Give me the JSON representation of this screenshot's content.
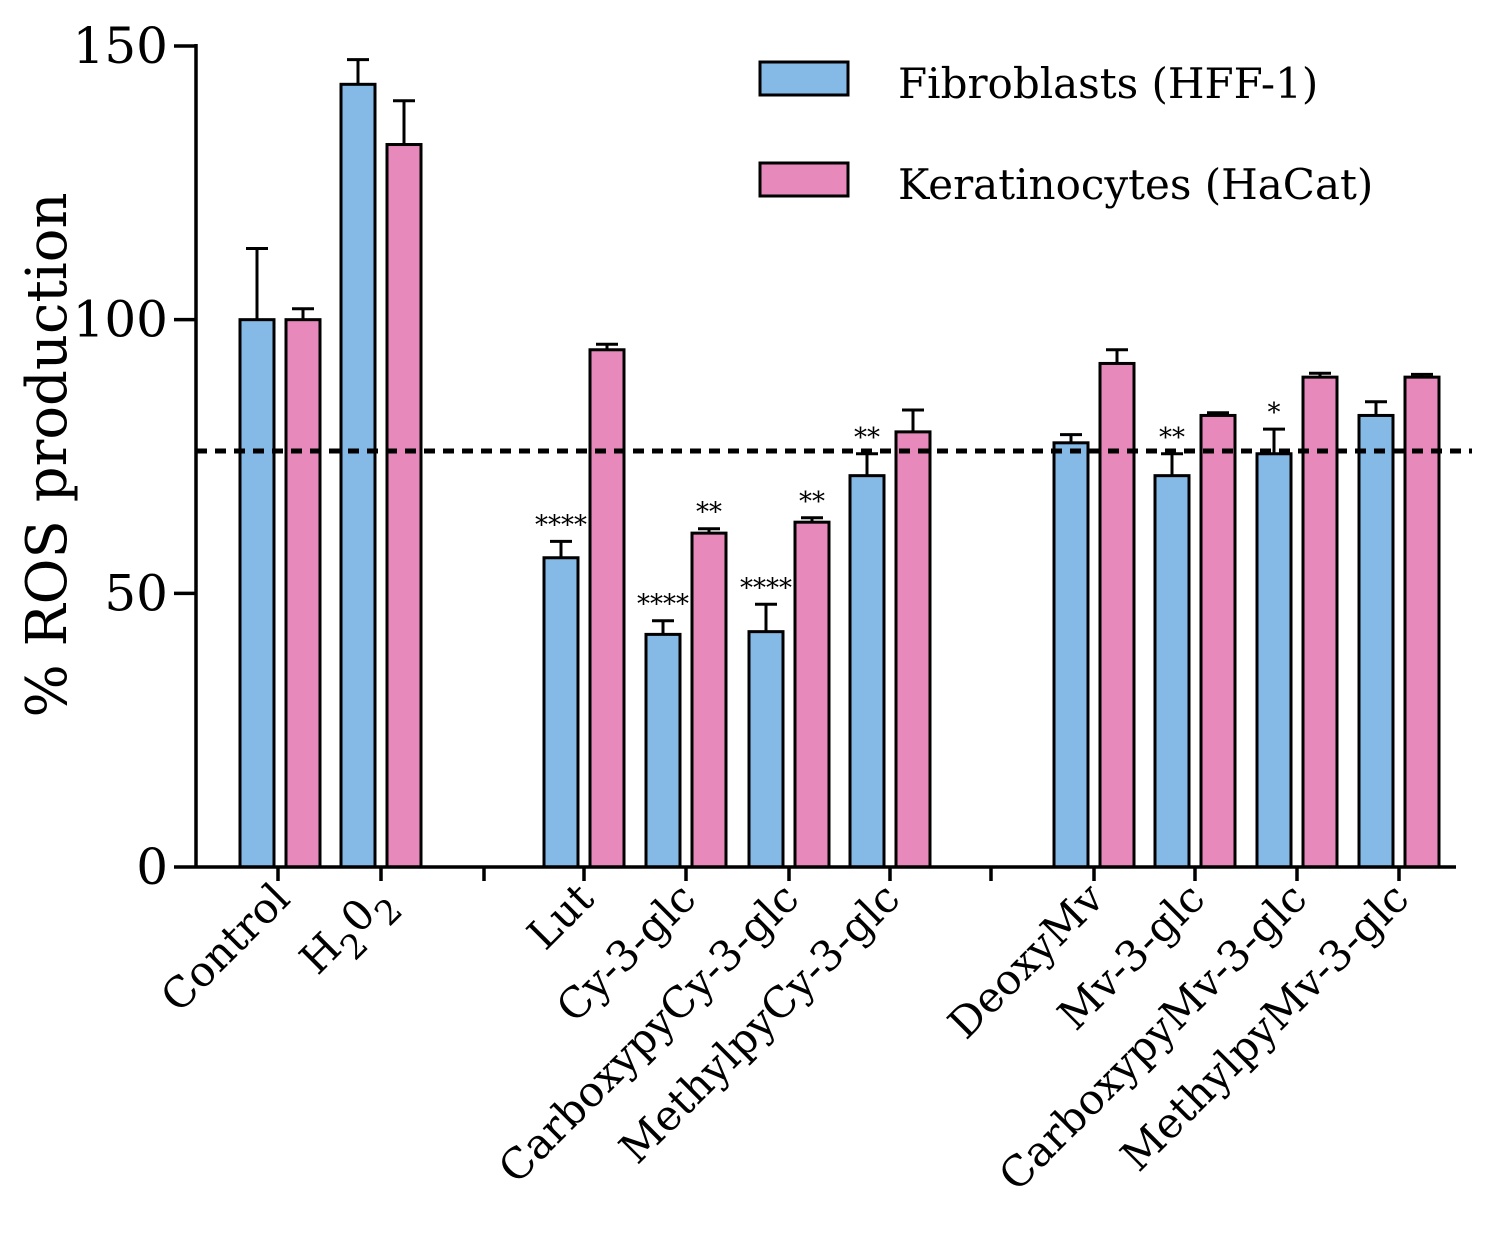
{
  "chart_data": {
    "type": "bar",
    "ylabel": "% ROS production",
    "ylim": [
      0,
      150
    ],
    "yticks": [
      "0",
      "50",
      "100",
      "150"
    ],
    "reference_line": 76,
    "legend_position": "top-right",
    "colors": {
      "fibroblasts": "#85b9e6",
      "keratinocytes": "#e889bb",
      "outline": "#000000"
    },
    "series": [
      {
        "name": "Fibroblasts (HFF-1)",
        "key": "fibroblasts",
        "values": [
          100,
          143,
          56.5,
          42.5,
          43,
          71.5,
          77.5,
          71.5,
          75.5,
          82.5
        ],
        "errors": [
          13,
          4.5,
          3,
          2.5,
          5,
          4,
          1.5,
          4,
          4.5,
          2.5
        ]
      },
      {
        "name": "Keratinocytes (HaCat)",
        "key": "keratinocytes",
        "values": [
          100,
          132,
          94.5,
          61,
          63,
          79.5,
          92,
          82.5,
          89.5,
          89.5
        ],
        "errors": [
          2,
          8,
          1,
          0.8,
          0.8,
          4,
          2.5,
          0.5,
          0.7,
          0.5
        ]
      }
    ],
    "categories": [
      {
        "label": "Control",
        "sub": "",
        "sig_fib": "",
        "sig_ker": ""
      },
      {
        "label": "H",
        "sub": "2",
        "mid": "0",
        "sub2": "2",
        "sig_fib": "",
        "sig_ker": ""
      },
      {
        "label": "Lut",
        "sig_fib": "****",
        "sig_ker": ""
      },
      {
        "label": "Cy-3-glc",
        "sig_fib": "****",
        "sig_ker": "**"
      },
      {
        "label": "CarboxypyCy-3-glc",
        "sig_fib": "****",
        "sig_ker": "**"
      },
      {
        "label": "MethylpyCy-3-glc",
        "sig_fib": "**",
        "sig_ker": ""
      },
      {
        "label": "DeoxyMv",
        "sig_fib": "",
        "sig_ker": ""
      },
      {
        "label": "Mv-3-glc",
        "sig_fib": "**",
        "sig_ker": ""
      },
      {
        "label": "CarboxypyMv-3-glc",
        "sig_fib": "*",
        "sig_ker": ""
      },
      {
        "label": "MethylpyMv-3-glc",
        "sig_fib": "",
        "sig_ker": ""
      }
    ]
  }
}
